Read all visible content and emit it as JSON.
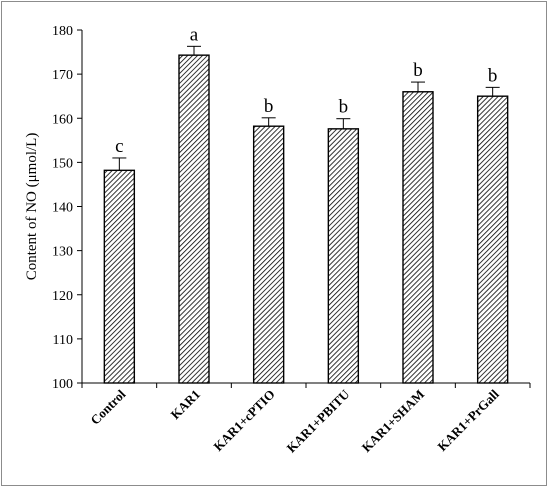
{
  "chart_data": {
    "type": "bar",
    "title": "",
    "xlabel": "",
    "ylabel": "Content of NO (μmol/L)",
    "ylim": [
      100,
      180
    ],
    "yticks": [
      100,
      110,
      120,
      130,
      140,
      150,
      160,
      170,
      180
    ],
    "categories": [
      "Control",
      "KAR1",
      "KAR1+cPTIO",
      "KAR1+PBITU",
      "KAR1+SHAM",
      "KAR1+PrGall"
    ],
    "values": [
      148.2,
      174.3,
      158.2,
      157.6,
      166.0,
      165.0
    ],
    "errors": [
      2.8,
      2.0,
      1.9,
      2.3,
      2.2,
      2.0
    ],
    "significance": [
      "c",
      "a",
      "b",
      "b",
      "b",
      "b"
    ],
    "bar_fill": "diagonal-hatch",
    "grid": false,
    "legend": "none",
    "colors": {
      "bar_stroke": "#000000",
      "hatch": "#000000",
      "background": "#ffffff",
      "frame": "#8c8c8c"
    }
  }
}
